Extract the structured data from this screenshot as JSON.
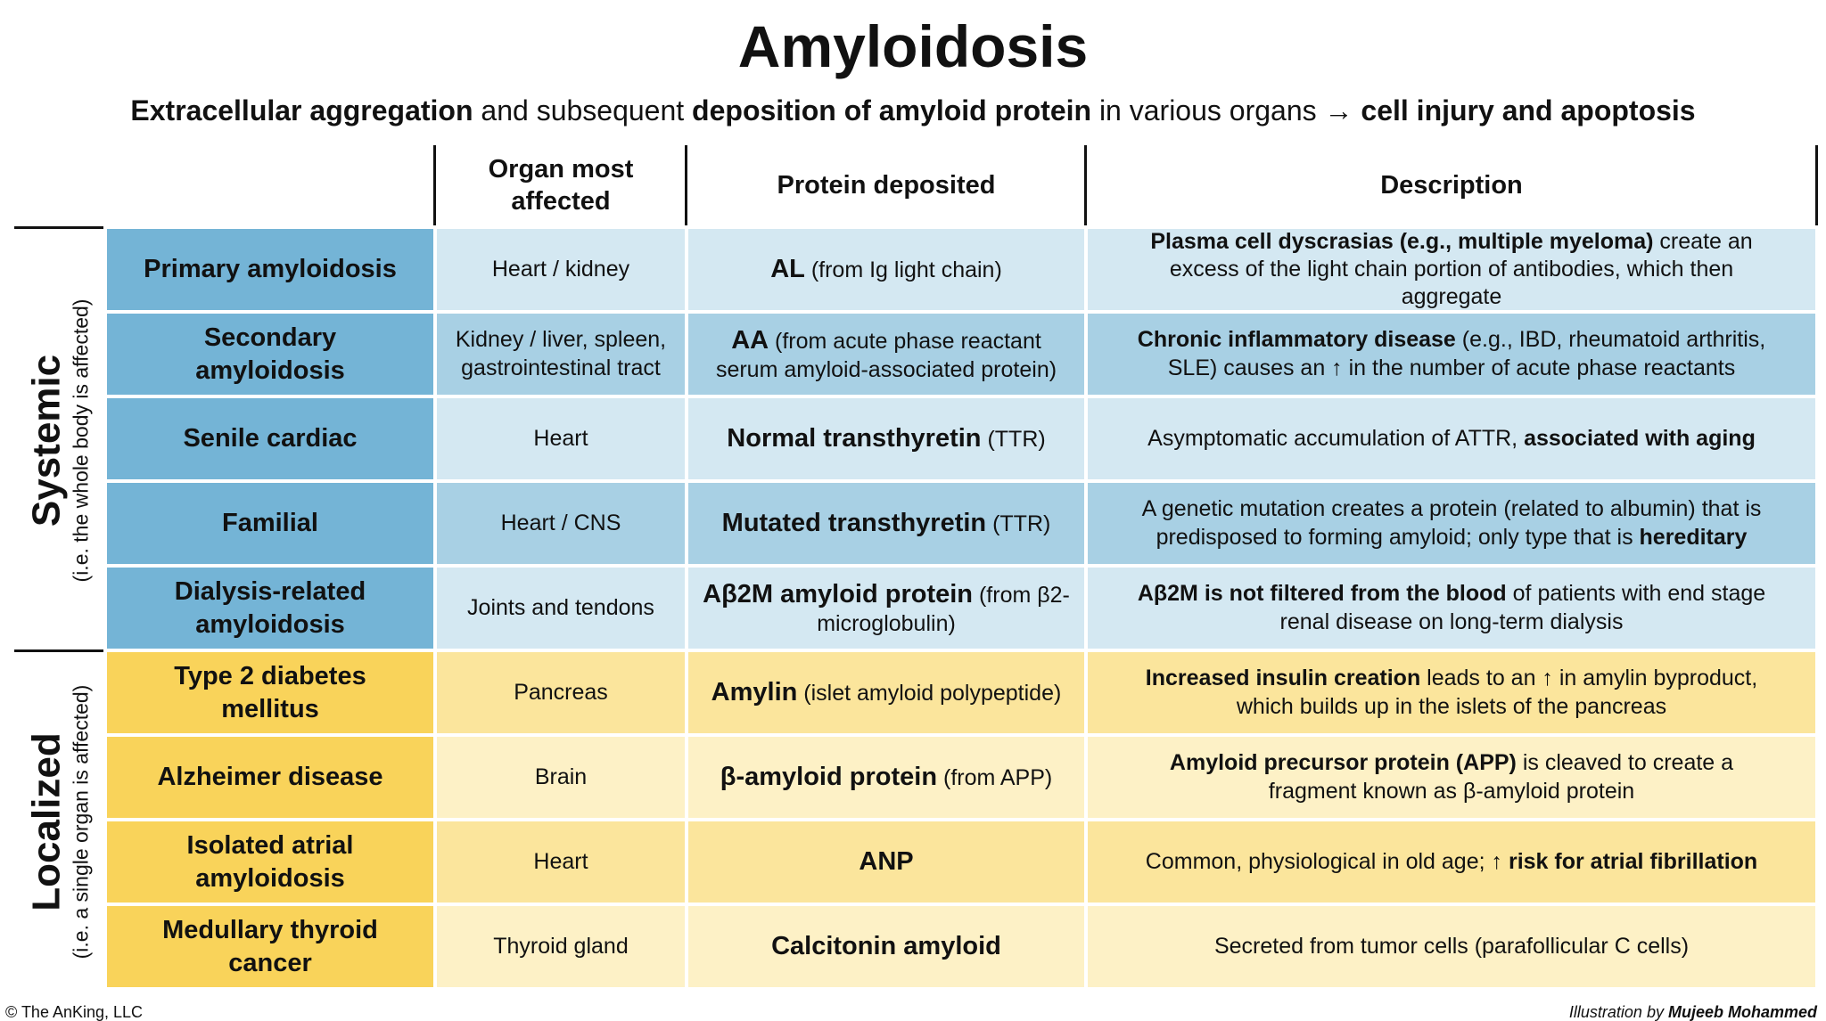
{
  "header": {
    "title": "Amyloidosis",
    "subtitle": [
      {
        "text": "Extracellular aggregation",
        "bold": true
      },
      {
        "text": " and subsequent ",
        "bold": false
      },
      {
        "text": "deposition of amyloid protein",
        "bold": true
      },
      {
        "text": " in various organs → ",
        "bold": false
      },
      {
        "text": "cell injury and apoptosis",
        "bold": true
      }
    ]
  },
  "table": {
    "columns": [
      "Organ most affected",
      "Protein deposited",
      "Description"
    ],
    "groups": [
      {
        "label": "Systemic",
        "note": "(i.e. the whole body is affected)",
        "rows": [
          {
            "name": "Primary amyloidosis",
            "organ": "Heart / kidney",
            "protein": [
              {
                "text": "AL",
                "bold": true
              },
              {
                "text": " (from Ig light chain)",
                "bold": false
              }
            ],
            "description": [
              {
                "text": "Plasma cell dyscrasias (e.g., multiple myeloma)",
                "bold": true
              },
              {
                "text": " create an excess of the light chain portion of antibodies, which then aggregate",
                "bold": false
              }
            ]
          },
          {
            "name": "Secondary amyloidosis",
            "organ": "Kidney / liver, spleen, gastrointestinal tract",
            "protein": [
              {
                "text": "AA",
                "bold": true
              },
              {
                "text": " (from acute phase reactant serum amyloid-associated protein)",
                "bold": false
              }
            ],
            "description": [
              {
                "text": "Chronic inflammatory disease",
                "bold": true
              },
              {
                "text": " (e.g., IBD, rheumatoid arthritis, SLE) causes an ↑ in the number of acute phase reactants",
                "bold": false
              }
            ]
          },
          {
            "name": "Senile cardiac",
            "organ": "Heart",
            "protein": [
              {
                "text": "Normal transthyretin",
                "bold": true
              },
              {
                "text": " (TTR)",
                "bold": false
              }
            ],
            "description": [
              {
                "text": "Asymptomatic accumulation of ATTR, ",
                "bold": false
              },
              {
                "text": "associated with aging",
                "bold": true
              }
            ]
          },
          {
            "name": "Familial",
            "organ": "Heart / CNS",
            "protein": [
              {
                "text": "Mutated transthyretin",
                "bold": true
              },
              {
                "text": " (TTR)",
                "bold": false
              }
            ],
            "description": [
              {
                "text": "A genetic mutation creates a protein (related to albumin) that is predisposed to forming amyloid; only type that is ",
                "bold": false
              },
              {
                "text": "hereditary",
                "bold": true
              }
            ]
          },
          {
            "name": "Dialysis-related amyloidosis",
            "organ": "Joints and tendons",
            "protein": [
              {
                "text": "Aβ2M amyloid protein",
                "bold": true
              },
              {
                "text": " (from β2-microglobulin)",
                "bold": false
              }
            ],
            "description": [
              {
                "text": "Aβ2M is not filtered from the blood",
                "bold": true
              },
              {
                "text": " of patients with end stage renal disease on long-term dialysis",
                "bold": false
              }
            ]
          }
        ]
      },
      {
        "label": "Localized",
        "note": "(i.e. a single organ is affected)",
        "rows": [
          {
            "name": "Type 2 diabetes mellitus",
            "organ": "Pancreas",
            "protein": [
              {
                "text": "Amylin",
                "bold": true
              },
              {
                "text": " (islet amyloid polypeptide)",
                "bold": false
              }
            ],
            "description": [
              {
                "text": "Increased insulin creation",
                "bold": true
              },
              {
                "text": " leads to an ↑ in amylin byproduct, which builds up in the islets of the pancreas",
                "bold": false
              }
            ]
          },
          {
            "name": "Alzheimer disease",
            "organ": "Brain",
            "protein": [
              {
                "text": "β-amyloid protein",
                "bold": true
              },
              {
                "text": " (from APP)",
                "bold": false
              }
            ],
            "description": [
              {
                "text": "Amyloid precursor protein (APP)",
                "bold": true
              },
              {
                "text": " is cleaved to create a fragment known as β-amyloid protein",
                "bold": false
              }
            ]
          },
          {
            "name": "Isolated atrial amyloidosis",
            "organ": "Heart",
            "protein": [
              {
                "text": "ANP",
                "bold": true
              }
            ],
            "description": [
              {
                "text": "Common, physiological in old age; ",
                "bold": false
              },
              {
                "text": "↑ risk for atrial fibrillation",
                "bold": true
              }
            ]
          },
          {
            "name": "Medullary thyroid cancer",
            "organ": "Thyroid gland",
            "protein": [
              {
                "text": "Calcitonin amyloid",
                "bold": true
              }
            ],
            "description": [
              {
                "text": "Secreted from tumor cells (parafollicular C cells)",
                "bold": false
              }
            ]
          }
        ]
      }
    ]
  },
  "footer": {
    "copyright": "© The AnKing, LLC",
    "credit": [
      {
        "text": "Illustration by ",
        "bold": false
      },
      {
        "text": "Mujeeb Mohammed",
        "bold": true
      }
    ]
  }
}
